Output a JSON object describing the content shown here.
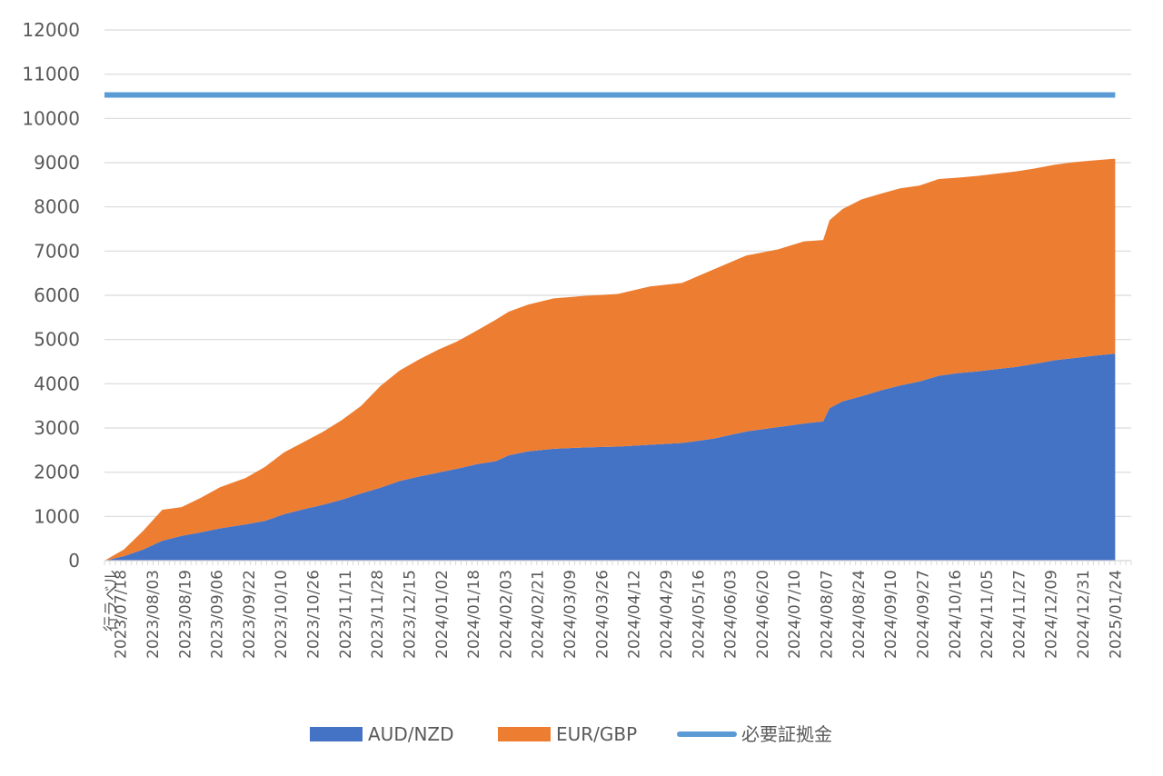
{
  "chart_data": {
    "type": "area",
    "stacked": true,
    "xlabel": "",
    "ylabel": "",
    "ylim": [
      0,
      12000
    ],
    "yticks": [
      0,
      1000,
      2000,
      3000,
      4000,
      5000,
      6000,
      7000,
      8000,
      9000,
      10000,
      11000,
      12000
    ],
    "grid": true,
    "legend_position": "bottom",
    "row_label": "行ラベル",
    "categories": [
      "2023/07/18",
      "2023/08/03",
      "2023/08/19",
      "2023/09/06",
      "2023/09/22",
      "2023/10/10",
      "2023/10/26",
      "2023/11/11",
      "2023/11/28",
      "2023/12/15",
      "2024/01/02",
      "2024/01/18",
      "2024/02/03",
      "2024/02/21",
      "2024/03/09",
      "2024/03/26",
      "2024/04/12",
      "2024/04/29",
      "2024/05/16",
      "2024/06/03",
      "2024/06/20",
      "2024/07/10",
      "2024/08/07",
      "2024/08/24",
      "2024/09/10",
      "2024/09/27",
      "2024/10/16",
      "2024/11/05",
      "2024/11/27",
      "2024/12/09",
      "2024/12/31",
      "2025/01/24"
    ],
    "series": [
      {
        "name": "AUD/NZD",
        "color": "#4472C4",
        "kind": "area",
        "values": [
          [
            0,
            0
          ],
          [
            0.6,
            100
          ],
          [
            1.2,
            250
          ],
          [
            1.8,
            450
          ],
          [
            2.4,
            560
          ],
          [
            3.0,
            640
          ],
          [
            3.6,
            730
          ],
          [
            4.4,
            820
          ],
          [
            5.0,
            900
          ],
          [
            5.6,
            1050
          ],
          [
            6.2,
            1160
          ],
          [
            6.8,
            1260
          ],
          [
            7.4,
            1380
          ],
          [
            8.0,
            1520
          ],
          [
            8.6,
            1650
          ],
          [
            9.2,
            1800
          ],
          [
            9.8,
            1900
          ],
          [
            10.4,
            1990
          ],
          [
            11.0,
            2080
          ],
          [
            11.6,
            2180
          ],
          [
            12.2,
            2250
          ],
          [
            12.6,
            2380
          ],
          [
            13.2,
            2470
          ],
          [
            14.0,
            2530
          ],
          [
            15.0,
            2560
          ],
          [
            16.0,
            2580
          ],
          [
            17.0,
            2620
          ],
          [
            18.0,
            2660
          ],
          [
            19.0,
            2760
          ],
          [
            20.0,
            2920
          ],
          [
            21.0,
            3020
          ],
          [
            21.8,
            3100
          ],
          [
            22.4,
            3150
          ],
          [
            22.6,
            3450
          ],
          [
            23.0,
            3600
          ],
          [
            23.6,
            3720
          ],
          [
            24.2,
            3850
          ],
          [
            24.8,
            3960
          ],
          [
            25.4,
            4050
          ],
          [
            26.0,
            4180
          ],
          [
            26.6,
            4240
          ],
          [
            27.2,
            4280
          ],
          [
            27.8,
            4330
          ],
          [
            28.4,
            4380
          ],
          [
            29.0,
            4450
          ],
          [
            29.6,
            4530
          ],
          [
            30.2,
            4580
          ],
          [
            30.8,
            4630
          ],
          [
            31.5,
            4680
          ]
        ]
      },
      {
        "name": "EUR/GBP",
        "color": "#ED7D31",
        "kind": "area",
        "values": [
          [
            0,
            0
          ],
          [
            0.6,
            150
          ],
          [
            1.2,
            420
          ],
          [
            1.8,
            700
          ],
          [
            2.4,
            650
          ],
          [
            3.0,
            780
          ],
          [
            3.6,
            930
          ],
          [
            4.4,
            1050
          ],
          [
            5.0,
            1220
          ],
          [
            5.6,
            1400
          ],
          [
            6.2,
            1520
          ],
          [
            6.8,
            1650
          ],
          [
            7.4,
            1800
          ],
          [
            8.0,
            1980
          ],
          [
            8.6,
            2300
          ],
          [
            9.2,
            2500
          ],
          [
            9.8,
            2650
          ],
          [
            10.4,
            2780
          ],
          [
            11.0,
            2880
          ],
          [
            11.6,
            3020
          ],
          [
            12.2,
            3200
          ],
          [
            12.6,
            3250
          ],
          [
            13.2,
            3320
          ],
          [
            14.0,
            3400
          ],
          [
            15.0,
            3430
          ],
          [
            16.0,
            3450
          ],
          [
            17.0,
            3580
          ],
          [
            18.0,
            3620
          ],
          [
            19.0,
            3830
          ],
          [
            20.0,
            3980
          ],
          [
            21.0,
            4020
          ],
          [
            21.8,
            4120
          ],
          [
            22.4,
            4100
          ],
          [
            22.6,
            4250
          ],
          [
            23.0,
            4350
          ],
          [
            23.6,
            4450
          ],
          [
            24.2,
            4450
          ],
          [
            24.8,
            4460
          ],
          [
            25.4,
            4430
          ],
          [
            26.0,
            4450
          ],
          [
            26.6,
            4420
          ],
          [
            27.2,
            4420
          ],
          [
            27.8,
            4420
          ],
          [
            28.4,
            4420
          ],
          [
            29.0,
            4420
          ],
          [
            29.6,
            4420
          ],
          [
            30.2,
            4430
          ],
          [
            30.8,
            4420
          ],
          [
            31.5,
            4410
          ]
        ]
      },
      {
        "name": "必要証拠金",
        "color": "#5B9BD5",
        "kind": "line",
        "values": [
          [
            0,
            10530
          ],
          [
            31.5,
            10530
          ]
        ]
      }
    ]
  }
}
